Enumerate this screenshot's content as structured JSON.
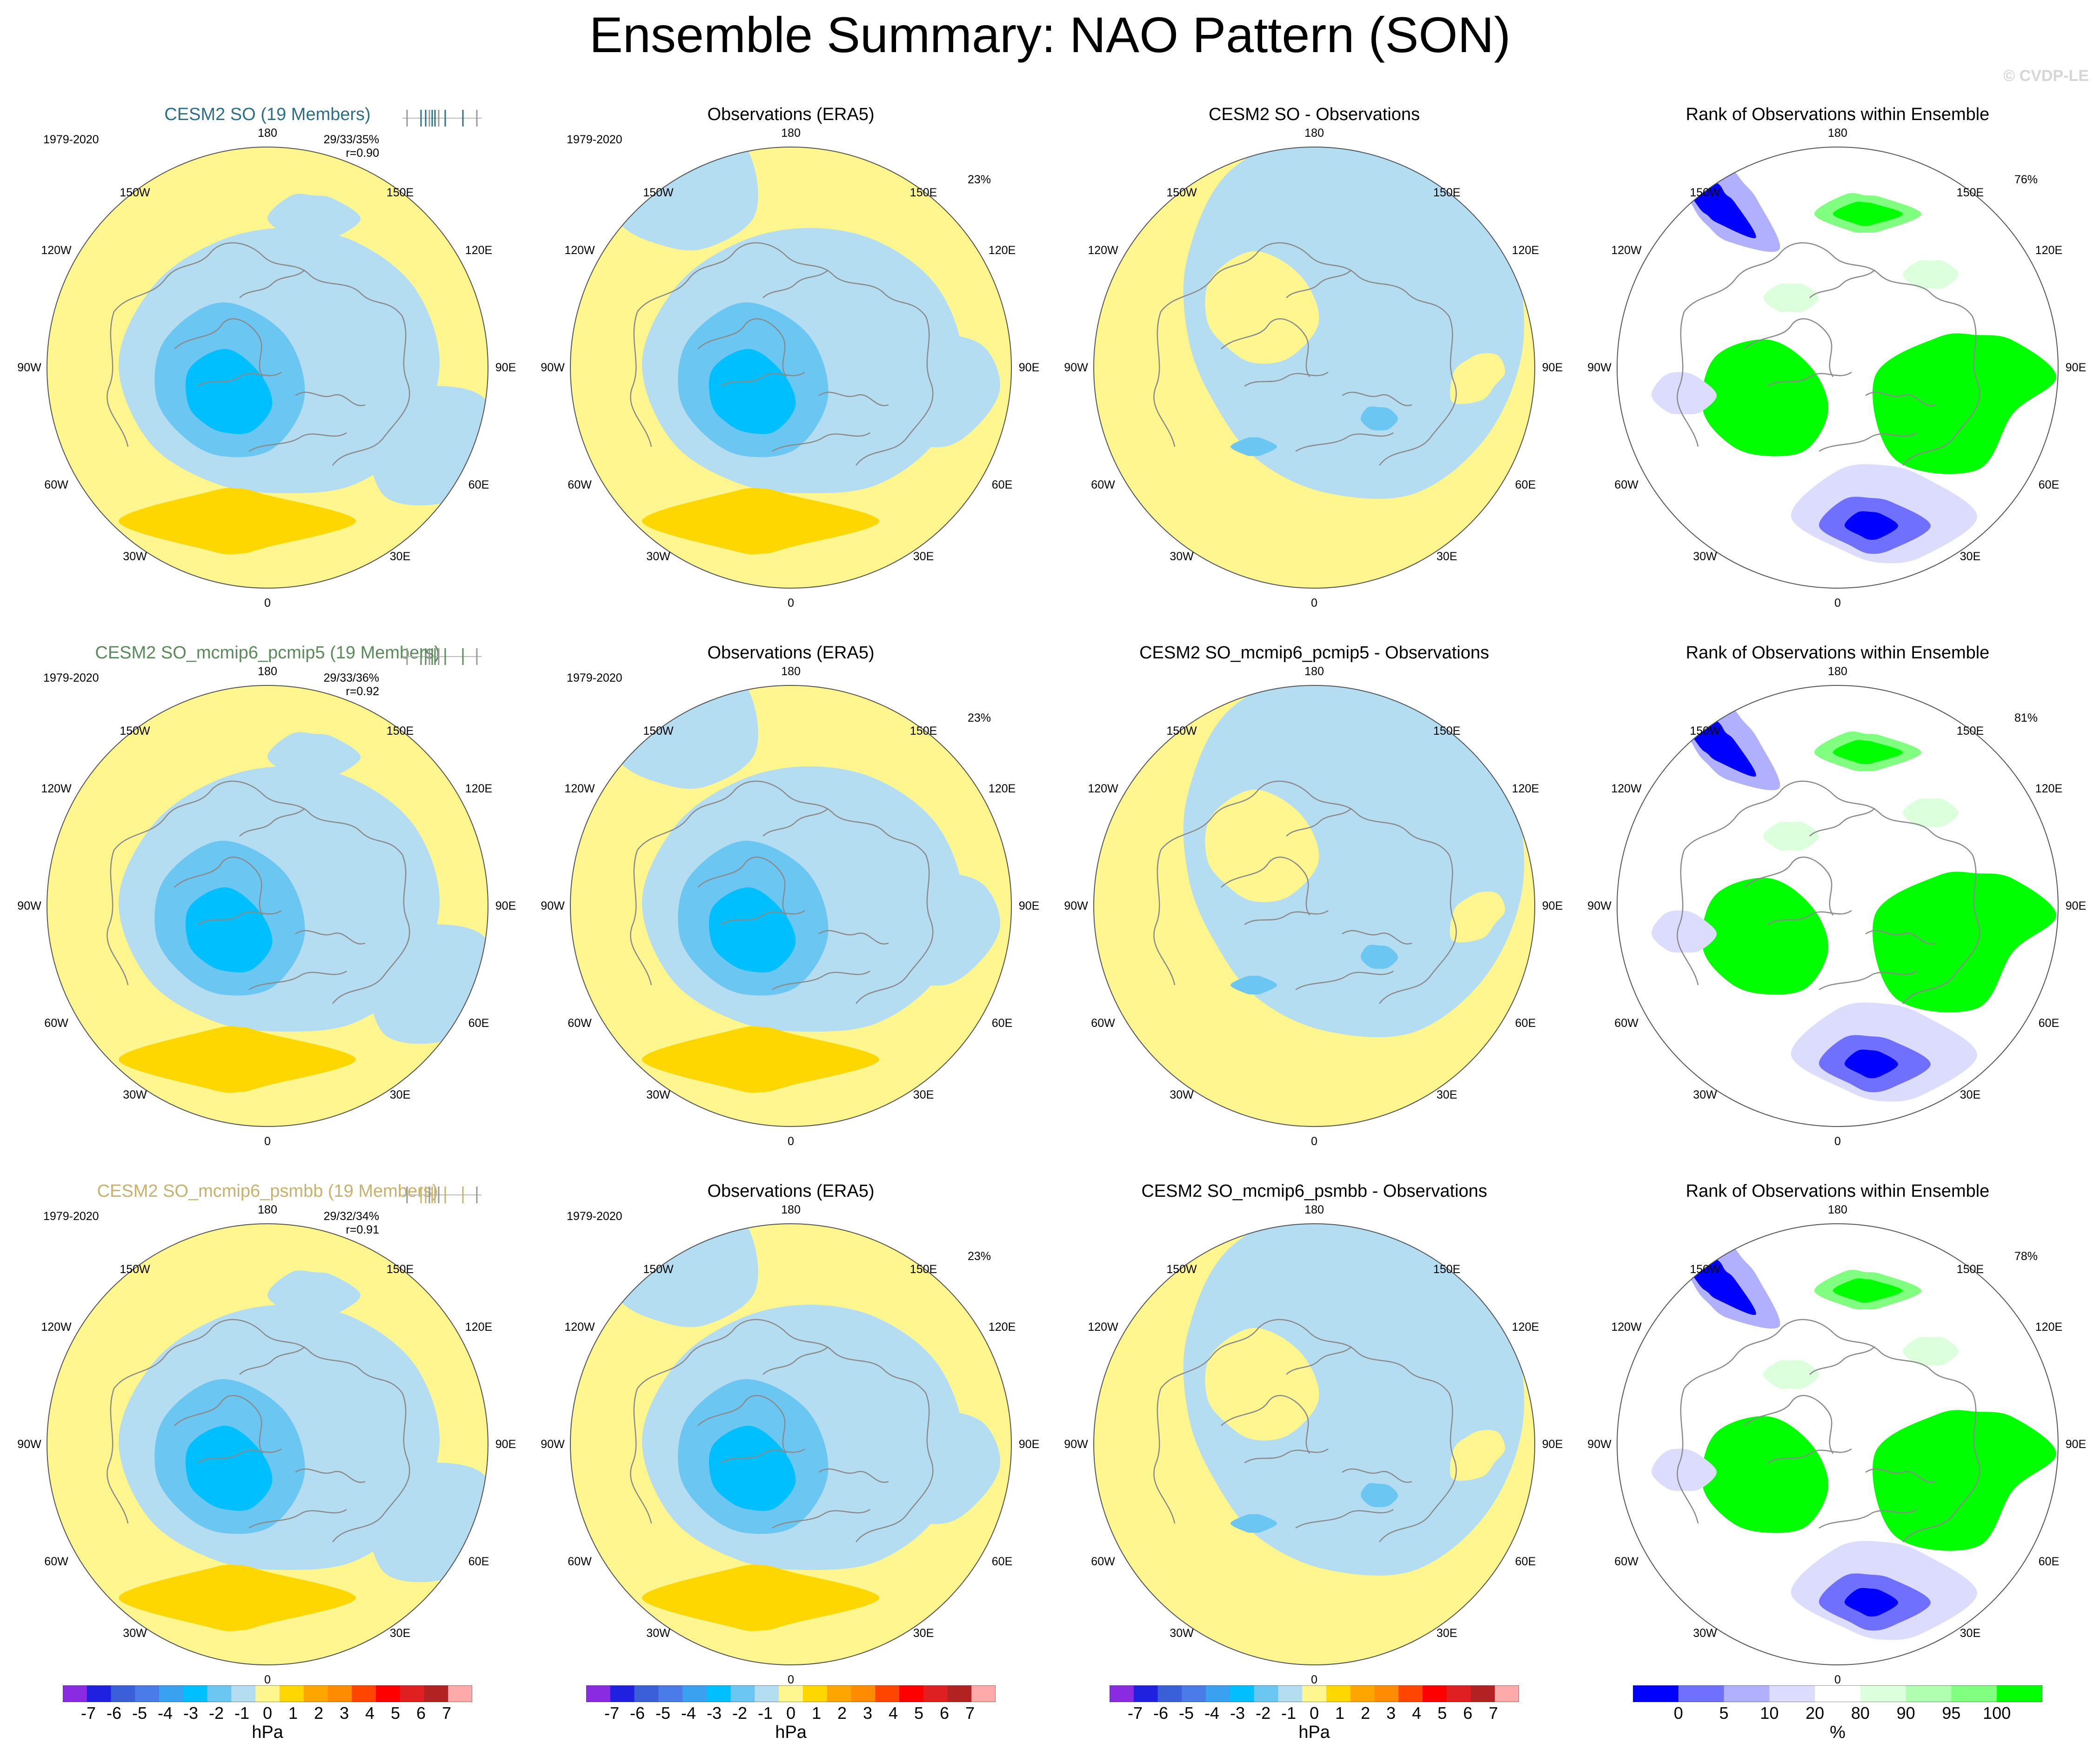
{
  "title": "Ensemble Summary: NAO Pattern (SON)",
  "watermark": "© CVDP-LE",
  "colors": {
    "land_lines": "#8a8a8a",
    "ocean_grid": "#bdbdbd",
    "row1_title": "#2e6f88",
    "row2_title": "#5b8a5b",
    "row3_title": "#c6b26e",
    "rank_pct": [
      "#0000ff",
      "#7070ff",
      "#b0b0ff",
      "#dcdcff",
      "#ffffff",
      "#dcffdc",
      "#b0ffb0",
      "#80ff80",
      "#00ff00"
    ],
    "hpa": [
      "#8a2be2",
      "#2020e0",
      "#3a5fd8",
      "#4b7be8",
      "#3aa0f0",
      "#00bfff",
      "#6cc6f2",
      "#b4ddf2",
      "#fff68f",
      "#ffd700",
      "#ffa500",
      "#ff8c00",
      "#ff4500",
      "#ff0000",
      "#e02020",
      "#b22222",
      "#ffaaaa"
    ]
  },
  "lon_labels": {
    "top": "180",
    "bottom": "0",
    "upper_left": "150W",
    "upper_right": "150E",
    "left_upper": "120W",
    "right_upper": "120E",
    "left": "90W",
    "right": "90E",
    "left_lower": "60W",
    "right_lower": "60E",
    "lower_left": "30W",
    "lower_right": "30E"
  },
  "rows": [
    {
      "model": {
        "title": "CESM2 SO (19 Members)",
        "period": "1979-2020",
        "stats": "29/33/35%",
        "corr": "r=0.90",
        "pct": ""
      },
      "obs": {
        "title": "Observations (ERA5)",
        "period": "1979-2020",
        "pct": "23%"
      },
      "diff": {
        "title": "CESM2 SO - Observations"
      },
      "rank": {
        "title": "Rank of Observations within Ensemble",
        "pct": "76%"
      }
    },
    {
      "model": {
        "title": "CESM2 SO_mcmip6_pcmip5 (19 Members)",
        "period": "1979-2020",
        "stats": "29/33/36%",
        "corr": "r=0.92",
        "pct": ""
      },
      "obs": {
        "title": "Observations (ERA5)",
        "period": "1979-2020",
        "pct": "23%"
      },
      "diff": {
        "title": "CESM2 SO_mcmip6_pcmip5 - Observations"
      },
      "rank": {
        "title": "Rank of Observations within Ensemble",
        "pct": "81%"
      }
    },
    {
      "model": {
        "title": "CESM2 SO_mcmip6_psmbb (19 Members)",
        "period": "1979-2020",
        "stats": "29/32/34%",
        "corr": "r=0.91",
        "pct": ""
      },
      "obs": {
        "title": "Observations (ERA5)",
        "period": "1979-2020",
        "pct": "23%"
      },
      "diff": {
        "title": "CESM2 SO_mcmip6_psmbb - Observations"
      },
      "rank": {
        "title": "Rank of Observations within Ensemble",
        "pct": "78%"
      }
    }
  ],
  "colorbars": {
    "hpa": {
      "ticks": [
        "-7",
        "-6",
        "-5",
        "-4",
        "-3",
        "-2",
        "-1",
        "0",
        "1",
        "2",
        "3",
        "4",
        "5",
        "6",
        "7"
      ],
      "unit": "hPa"
    },
    "rank": {
      "ticks": [
        "0",
        "5",
        "10",
        "20",
        "80",
        "90",
        "95",
        "100"
      ],
      "unit": "%"
    }
  }
}
